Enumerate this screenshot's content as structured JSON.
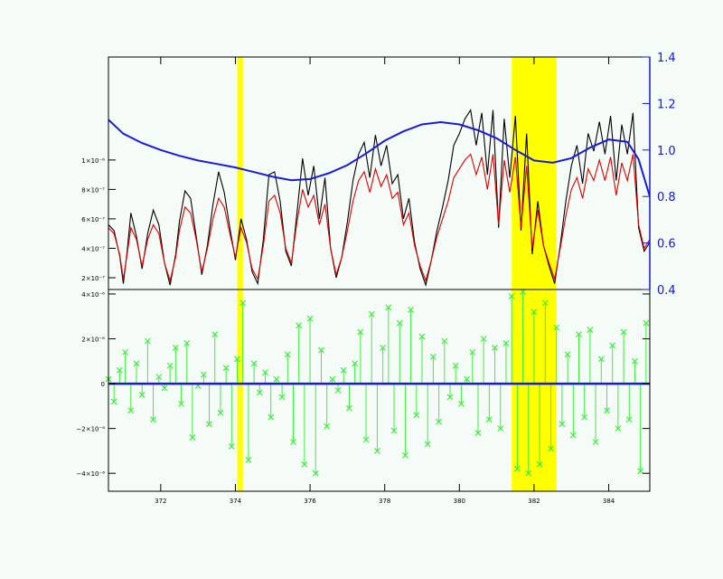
{
  "chart_data": [
    {
      "panel": "top",
      "type": "line",
      "xlim": [
        370.6,
        385.1
      ],
      "ylim_left": [
        1.2e-07,
        1.7e-06
      ],
      "ylim_right": [
        0.4,
        1.4
      ],
      "y_ticks_left": [
        {
          "value": 2e-07,
          "label": "2×10⁻⁷"
        },
        {
          "value": 4e-07,
          "label": "4×10⁻⁷"
        },
        {
          "value": 6e-07,
          "label": "6×10⁻⁷"
        },
        {
          "value": 8e-07,
          "label": "8×10⁻⁷"
        },
        {
          "value": 1e-06,
          "label": "1×10⁻⁶"
        }
      ],
      "y_ticks_right": [
        {
          "value": 0.4,
          "label": "0.4"
        },
        {
          "value": 0.6,
          "label": "0.6"
        },
        {
          "value": 0.8,
          "label": "0.8"
        },
        {
          "value": 1.0,
          "label": "1.0"
        },
        {
          "value": 1.2,
          "label": "1.2"
        },
        {
          "value": 1.4,
          "label": "1.4"
        }
      ],
      "highlight_bands": [
        [
          374.05,
          374.2
        ],
        [
          381.4,
          382.6
        ]
      ],
      "series": [
        {
          "color": "#000000",
          "axis": "left",
          "x": [
            370.6,
            370.75,
            370.9,
            371.0,
            371.1,
            371.2,
            371.35,
            371.5,
            371.65,
            371.8,
            371.95,
            372.1,
            372.25,
            372.4,
            372.5,
            372.65,
            372.8,
            372.95,
            373.1,
            373.25,
            373.4,
            373.55,
            373.7,
            373.85,
            374.0,
            374.15,
            374.3,
            374.45,
            374.6,
            374.75,
            374.9,
            375.05,
            375.2,
            375.35,
            375.5,
            375.65,
            375.8,
            375.95,
            376.1,
            376.25,
            376.4,
            376.55,
            376.7,
            376.85,
            377.0,
            377.15,
            377.3,
            377.45,
            377.6,
            377.75,
            377.9,
            378.05,
            378.2,
            378.35,
            378.5,
            378.65,
            378.8,
            378.95,
            379.1,
            379.25,
            379.4,
            379.55,
            379.7,
            379.85,
            380.0,
            380.15,
            380.3,
            380.45,
            380.6,
            380.75,
            380.9,
            381.05,
            381.2,
            381.35,
            381.5,
            381.65,
            381.8,
            381.95,
            382.1,
            382.25,
            382.4,
            382.55,
            382.7,
            382.85,
            383.0,
            383.15,
            383.3,
            383.45,
            383.6,
            383.75,
            383.9,
            384.05,
            384.2,
            384.35,
            384.5,
            384.65,
            384.8,
            384.95,
            385.1
          ],
          "y": [
            5.6e-07,
            5.2e-07,
            3.5e-07,
            1.6e-07,
            3.8e-07,
            6.4e-07,
            4.8e-07,
            2.6e-07,
            5e-07,
            6.6e-07,
            5.6e-07,
            3e-07,
            1.5e-07,
            3.6e-07,
            5.8e-07,
            7.9e-07,
            7.4e-07,
            4.8e-07,
            2.2e-07,
            4.2e-07,
            7e-07,
            9.2e-07,
            7.8e-07,
            5.4e-07,
            3.2e-07,
            6e-07,
            4.6e-07,
            2.4e-07,
            1.6e-07,
            4.6e-07,
            9e-07,
            9.2e-07,
            7.2e-07,
            3.8e-07,
            2.8e-07,
            6.4e-07,
            1.01e-06,
            7.6e-07,
            9.6e-07,
            6e-07,
            8.8e-07,
            4e-07,
            2e-07,
            3.4e-07,
            5.8e-07,
            8.6e-07,
            1.04e-06,
            1.12e-06,
            8.8e-07,
            1.17e-06,
            9.6e-07,
            1.1e-06,
            8.4e-07,
            9e-07,
            6e-07,
            7.4e-07,
            4.4e-07,
            2.6e-07,
            1.5e-07,
            3.2e-07,
            5.2e-07,
            6.8e-07,
            8.6e-07,
            1.1e-06,
            1.18e-06,
            1.28e-06,
            1.34e-06,
            1.1e-06,
            1.32e-06,
            9e-07,
            1.34e-06,
            5.4e-07,
            1.28e-06,
            8.8e-07,
            1.3e-06,
            5.2e-07,
            1.18e-06,
            3.6e-07,
            7.2e-07,
            4.2e-07,
            2.8e-07,
            1.6e-07,
            4.2e-07,
            7.2e-07,
            9.6e-07,
            1.1e-06,
            8.4e-07,
            1.18e-06,
            1.06e-06,
            1.26e-06,
            1.04e-06,
            1.3e-06,
            8.6e-07,
            1.24e-06,
            1.04e-06,
            1.32e-06,
            5.4e-07,
            3.8e-07,
            4.4e-07
          ]
        },
        {
          "color": "#e00000",
          "axis": "left",
          "x": [
            370.6,
            370.75,
            370.9,
            371.0,
            371.1,
            371.2,
            371.35,
            371.5,
            371.65,
            371.8,
            371.95,
            372.1,
            372.25,
            372.4,
            372.5,
            372.65,
            372.8,
            372.95,
            373.1,
            373.25,
            373.4,
            373.55,
            373.7,
            373.85,
            374.0,
            374.15,
            374.3,
            374.45,
            374.6,
            374.75,
            374.9,
            375.05,
            375.2,
            375.35,
            375.5,
            375.65,
            375.8,
            375.95,
            376.1,
            376.25,
            376.4,
            376.55,
            376.7,
            376.85,
            377.0,
            377.15,
            377.3,
            377.45,
            377.6,
            377.75,
            377.9,
            378.05,
            378.2,
            378.35,
            378.5,
            378.65,
            378.8,
            378.95,
            379.1,
            379.25,
            379.4,
            379.55,
            379.7,
            379.85,
            380.0,
            380.15,
            380.3,
            380.45,
            380.6,
            380.75,
            380.9,
            381.05,
            381.2,
            381.35,
            381.5,
            381.65,
            381.8,
            381.95,
            382.1,
            382.25,
            382.4,
            382.55,
            382.7,
            382.85,
            383.0,
            383.15,
            383.3,
            383.45,
            383.6,
            383.75,
            383.9,
            384.05,
            384.2,
            384.35,
            384.5,
            384.65,
            384.8,
            384.95,
            385.1
          ],
          "y": [
            5.4e-07,
            5e-07,
            3.6e-07,
            1.9e-07,
            3.6e-07,
            5.4e-07,
            4.6e-07,
            2.8e-07,
            4.6e-07,
            5.6e-07,
            5e-07,
            3e-07,
            1.8e-07,
            3.4e-07,
            5.2e-07,
            6.8e-07,
            6.4e-07,
            4.6e-07,
            2.4e-07,
            4e-07,
            6e-07,
            7.4e-07,
            6.8e-07,
            5e-07,
            3.4e-07,
            5.4e-07,
            4.4e-07,
            2.6e-07,
            1.9e-07,
            4.2e-07,
            7.2e-07,
            7.6e-07,
            6.4e-07,
            4e-07,
            3e-07,
            5.8e-07,
            8e-07,
            6.8e-07,
            7.6e-07,
            5.6e-07,
            7e-07,
            4e-07,
            2.2e-07,
            3.4e-07,
            5.2e-07,
            7.2e-07,
            8.6e-07,
            9.2e-07,
            7.8e-07,
            9.4e-07,
            8.2e-07,
            9e-07,
            7.4e-07,
            7.8e-07,
            5.6e-07,
            6.4e-07,
            4.2e-07,
            2.8e-07,
            1.8e-07,
            3.2e-07,
            4.8e-07,
            6e-07,
            7.2e-07,
            8.8e-07,
            9.4e-07,
            1e-06,
            1.04e-06,
            9e-07,
            1.02e-06,
            8e-07,
            1.04e-06,
            5.6e-07,
            1e-06,
            7.8e-07,
            1.02e-06,
            5.4e-07,
            9.6e-07,
            4e-07,
            6.6e-07,
            4.2e-07,
            3e-07,
            1.9e-07,
            4e-07,
            6.2e-07,
            8e-07,
            8.8e-07,
            7.4e-07,
            9.4e-07,
            8.6e-07,
            1e-06,
            8.6e-07,
            1.02e-06,
            7.6e-07,
            9.8e-07,
            8.6e-07,
            1.04e-06,
            5.6e-07,
            4e-07,
            4.6e-07
          ]
        },
        {
          "color": "#1a1adc",
          "axis": "right",
          "x": [
            370.6,
            371.0,
            371.5,
            372.0,
            372.5,
            373.0,
            373.5,
            374.0,
            374.5,
            375.0,
            375.5,
            376.0,
            376.5,
            377.0,
            377.5,
            378.0,
            378.5,
            379.0,
            379.5,
            380.0,
            380.5,
            381.0,
            381.5,
            382.0,
            382.5,
            383.0,
            383.5,
            384.0,
            384.5,
            384.8,
            385.1
          ],
          "y": [
            1.13,
            1.07,
            1.03,
            1.0,
            0.975,
            0.955,
            0.94,
            0.925,
            0.905,
            0.885,
            0.87,
            0.875,
            0.9,
            0.935,
            0.985,
            1.04,
            1.08,
            1.11,
            1.12,
            1.11,
            1.085,
            1.05,
            1.0,
            0.955,
            0.945,
            0.965,
            1.01,
            1.045,
            1.035,
            0.96,
            0.8
          ]
        }
      ]
    },
    {
      "panel": "bottom",
      "type": "scatter",
      "xlim": [
        370.6,
        385.1
      ],
      "ylim": [
        -4.8e-06,
        4.2e-06
      ],
      "x_ticks": [
        {
          "value": 372,
          "label": "372"
        },
        {
          "value": 374,
          "label": "374"
        },
        {
          "value": 376,
          "label": "376"
        },
        {
          "value": 378,
          "label": "378"
        },
        {
          "value": 380,
          "label": "380"
        },
        {
          "value": 382,
          "label": "382"
        },
        {
          "value": 384,
          "label": "384"
        }
      ],
      "y_ticks": [
        {
          "value": -4e-06,
          "label": "−4×10⁻⁶"
        },
        {
          "value": -2e-06,
          "label": "−2×10⁻⁶"
        },
        {
          "value": 0,
          "label": "0"
        },
        {
          "value": 2e-06,
          "label": "2×10⁻⁶"
        },
        {
          "value": 4e-06,
          "label": "4×10⁻⁶"
        }
      ],
      "highlight_bands": [
        [
          374.05,
          374.2
        ],
        [
          381.4,
          382.6
        ]
      ],
      "zero_line": {
        "value": 0,
        "color": "#1a1adc"
      },
      "series": [
        {
          "color": "#3df03d",
          "marker": "x",
          "x": [
            370.6,
            370.75,
            370.9,
            371.05,
            371.2,
            371.35,
            371.5,
            371.65,
            371.8,
            371.95,
            372.1,
            372.25,
            372.4,
            372.55,
            372.7,
            372.85,
            373.0,
            373.15,
            373.3,
            373.45,
            373.6,
            373.75,
            373.9,
            374.05,
            374.2,
            374.35,
            374.5,
            374.65,
            374.8,
            374.95,
            375.1,
            375.25,
            375.4,
            375.55,
            375.7,
            375.85,
            376.0,
            376.15,
            376.3,
            376.45,
            376.6,
            376.75,
            376.9,
            377.05,
            377.2,
            377.35,
            377.5,
            377.65,
            377.8,
            377.95,
            378.1,
            378.25,
            378.4,
            378.55,
            378.7,
            378.85,
            379.0,
            379.15,
            379.3,
            379.45,
            379.6,
            379.75,
            379.9,
            380.05,
            380.2,
            380.35,
            380.5,
            380.65,
            380.8,
            380.95,
            381.1,
            381.25,
            381.4,
            381.55,
            381.7,
            381.85,
            382.0,
            382.15,
            382.3,
            382.45,
            382.6,
            382.75,
            382.9,
            383.05,
            383.2,
            383.35,
            383.5,
            383.65,
            383.8,
            383.95,
            384.1,
            384.25,
            384.4,
            384.55,
            384.7,
            384.85,
            385.0
          ],
          "y": [
            2e-07,
            -8e-07,
            6e-07,
            1.4e-06,
            -1.2e-06,
            9e-07,
            -5e-07,
            1.9e-06,
            -1.6e-06,
            3e-07,
            -2e-07,
            8e-07,
            1.6e-06,
            -9e-07,
            1.8e-06,
            -2.4e-06,
            -1e-07,
            4e-07,
            -1.8e-06,
            2.2e-06,
            -1.3e-06,
            7e-07,
            -2.8e-06,
            1.1e-06,
            3.6e-06,
            -3.4e-06,
            9e-07,
            -4e-07,
            5e-07,
            -1.5e-06,
            2e-07,
            -6e-07,
            1.3e-06,
            -2.6e-06,
            2.6e-06,
            -3.6e-06,
            2.9e-06,
            -4e-06,
            1.5e-06,
            -1.9e-06,
            2e-07,
            -3e-07,
            6e-07,
            -1.1e-06,
            9e-07,
            2.3e-06,
            -2.5e-06,
            3.1e-06,
            -3e-06,
            1.6e-06,
            3.4e-06,
            -2.1e-06,
            2.7e-06,
            -3.2e-06,
            3.3e-06,
            -1.4e-06,
            2.1e-06,
            -2.7e-06,
            1.2e-06,
            -1.7e-06,
            1.9e-06,
            -6e-07,
            8e-07,
            -9e-07,
            2e-07,
            1.4e-06,
            -2.2e-06,
            2e-06,
            -1.6e-06,
            1.6e-06,
            -2e-06,
            1.8e-06,
            3.9e-06,
            -3.8e-06,
            4.1e-06,
            -4e-06,
            3.2e-06,
            -3.6e-06,
            3.6e-06,
            -2.9e-06,
            2.5e-06,
            -1.8e-06,
            1.3e-06,
            -2.3e-06,
            2.2e-06,
            -1.5e-06,
            2.4e-06,
            -2.6e-06,
            1.1e-06,
            -1.2e-06,
            1.7e-06,
            -2e-06,
            2.3e-06,
            -1.6e-06,
            1e-06,
            -3.9e-06,
            2.7e-06
          ]
        }
      ]
    }
  ]
}
